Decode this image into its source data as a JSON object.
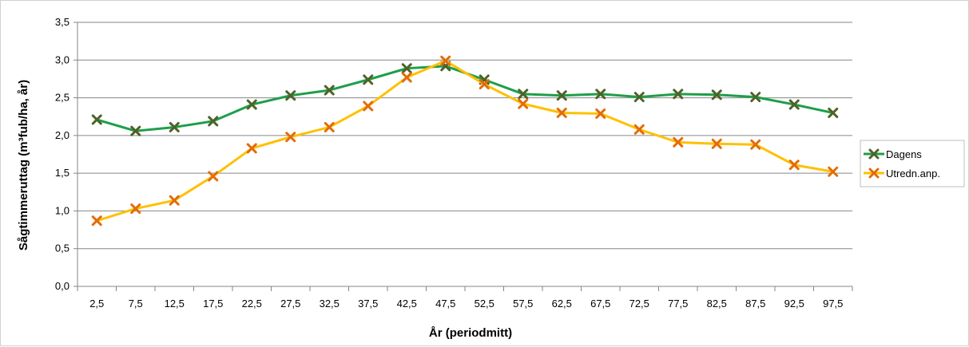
{
  "chart_data": {
    "type": "line",
    "title": "",
    "xlabel": "År (periodmitt)",
    "ylabel": "Sågtimmeruttag (m³fub/ha, år)",
    "ylim": [
      0,
      3.5
    ],
    "yticks": [
      "0,0",
      "0,5",
      "1,0",
      "1,5",
      "2,0",
      "2,5",
      "3,0",
      "3,5"
    ],
    "grid": true,
    "legend_position": "right",
    "categories": [
      "2,5",
      "7,5",
      "12,5",
      "17,5",
      "22,5",
      "27,5",
      "32,5",
      "37,5",
      "42,5",
      "47,5",
      "52,5",
      "57,5",
      "62,5",
      "67,5",
      "72,5",
      "77,5",
      "82,5",
      "87,5",
      "92,5",
      "97,5"
    ],
    "series": [
      {
        "name": "Dagens",
        "line_color": "#1e9e4a",
        "marker_color": "#4f6228",
        "values": [
          2.21,
          2.06,
          2.11,
          2.19,
          2.41,
          2.53,
          2.6,
          2.74,
          2.89,
          2.92,
          2.74,
          2.55,
          2.53,
          2.55,
          2.51,
          2.55,
          2.54,
          2.51,
          2.41,
          2.3
        ]
      },
      {
        "name": "Utredn.anp.",
        "line_color": "#ffc000",
        "marker_color": "#e36c09",
        "values": [
          0.87,
          1.03,
          1.14,
          1.46,
          1.83,
          1.98,
          2.11,
          2.39,
          2.77,
          2.99,
          2.68,
          2.42,
          2.3,
          2.29,
          2.08,
          1.91,
          1.89,
          1.88,
          1.61,
          1.52
        ]
      }
    ]
  }
}
